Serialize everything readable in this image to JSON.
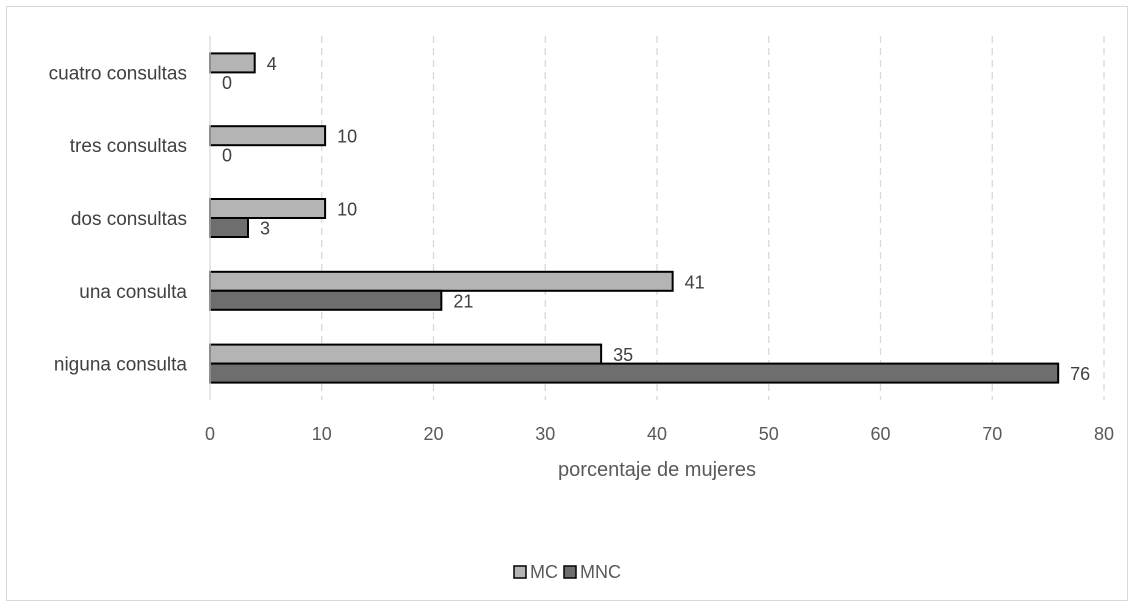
{
  "chart_data": {
    "type": "bar",
    "orientation": "horizontal",
    "categories": [
      "niguna consulta",
      "una consulta",
      "dos consultas",
      "tres consultas",
      "cuatro consultas"
    ],
    "series": [
      {
        "name": "MC",
        "values": [
          35,
          41.4,
          10.3,
          10.3,
          4
        ],
        "labels": [
          "35",
          "41",
          "10",
          "10",
          "4"
        ],
        "color": "#b4b4b4"
      },
      {
        "name": "MNC",
        "values": [
          75.9,
          20.7,
          3.4,
          0,
          0
        ],
        "labels": [
          "76",
          "21",
          "3",
          "0",
          "0"
        ],
        "color": "#6e6e6e"
      }
    ],
    "xlabel": "porcentaje de mujeres",
    "ylabel": "",
    "title": "",
    "xlim": [
      0,
      80
    ],
    "xticks": [
      0,
      10,
      20,
      30,
      40,
      50,
      60,
      70,
      80
    ],
    "xtick_labels": [
      "0",
      "10",
      "20",
      "30",
      "40",
      "50",
      "60",
      "70",
      "80"
    ],
    "grid": "vertical dashed",
    "legend_position": "bottom"
  }
}
